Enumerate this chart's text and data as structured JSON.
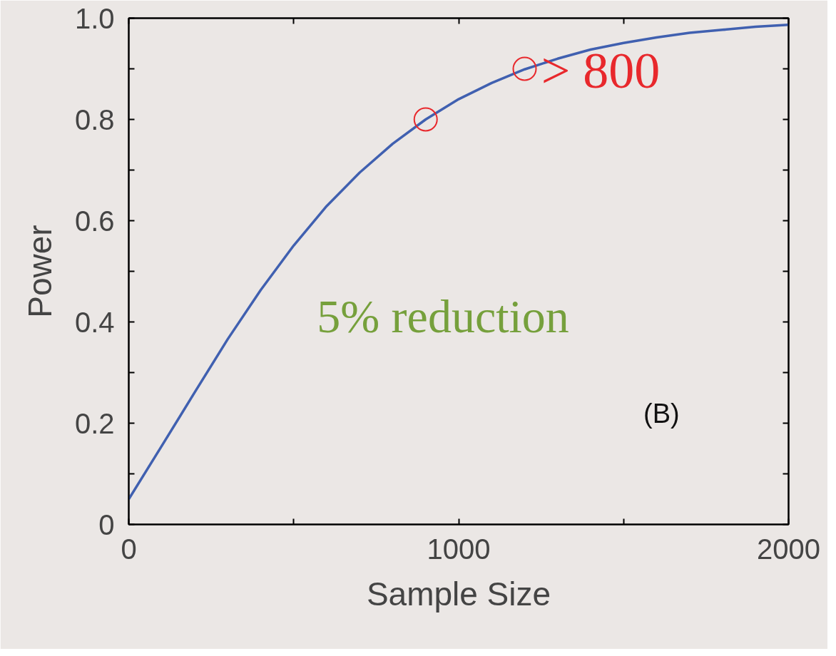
{
  "chart_data": {
    "type": "line",
    "xlabel": "Sample Size",
    "ylabel": "Power",
    "xlim": [
      0,
      2000
    ],
    "ylim": [
      0,
      1.0
    ],
    "xticks": [
      0,
      {
        "value": 500,
        "label": null
      },
      1000,
      {
        "value": 1500,
        "label": null
      },
      2000
    ],
    "yticks": [
      0,
      {
        "value": 0.1,
        "label": null
      },
      0.2,
      {
        "value": 0.3,
        "label": null
      },
      0.4,
      {
        "value": 0.5,
        "label": null
      },
      0.6,
      {
        "value": 0.7,
        "label": null
      },
      0.8,
      {
        "value": 0.9,
        "label": null
      },
      {
        "value": 1.0,
        "label": "1.0"
      }
    ],
    "grid": false,
    "series": [
      {
        "color": "#4060b0",
        "marker": "none",
        "line_style": "solid",
        "x": [
          0,
          100,
          200,
          300,
          400,
          500,
          600,
          700,
          800,
          900,
          1000,
          1100,
          1200,
          1300,
          1400,
          1500,
          1600,
          1700,
          1800,
          1900,
          2000
        ],
        "values": [
          0.05,
          0.155,
          0.261,
          0.366,
          0.463,
          0.551,
          0.629,
          0.695,
          0.752,
          0.8,
          0.84,
          0.872,
          0.899,
          0.92,
          0.938,
          0.951,
          0.962,
          0.971,
          0.977,
          0.983,
          0.987
        ]
      },
      {
        "type": "scatter",
        "color": "#e8282c",
        "marker": "circle",
        "x": [
          900,
          1200
        ],
        "values": [
          0.8,
          0.9
        ]
      }
    ],
    "annotations": [
      "> 800",
      "5% reduction",
      "(B)"
    ]
  }
}
